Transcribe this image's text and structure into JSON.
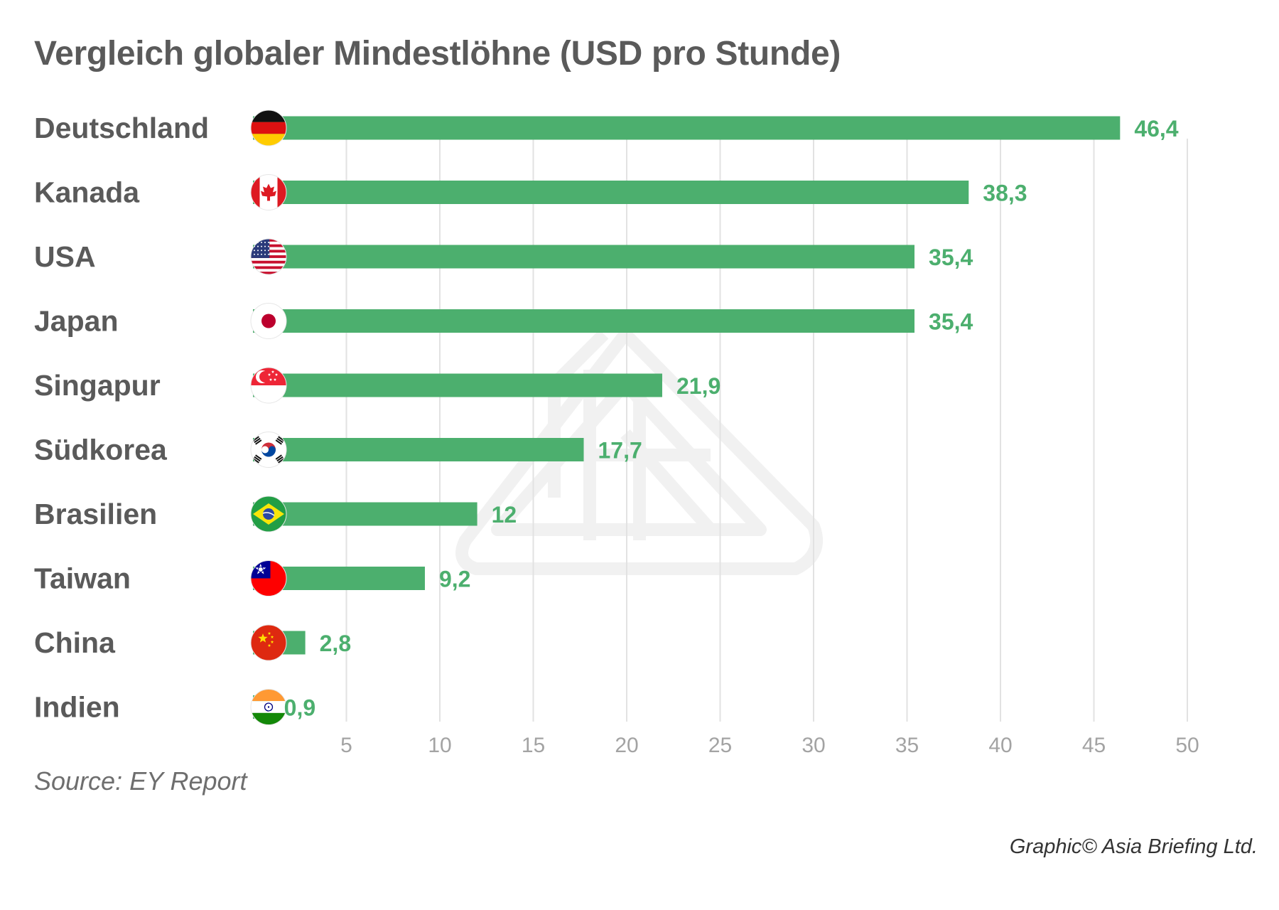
{
  "title": "Vergleich globaler Mindestlöhne (USD pro Stunde)",
  "source": "Source: EY Report",
  "credit": "Graphic© Asia Briefing Ltd.",
  "colors": {
    "bar": "#4caf6e",
    "value_text": "#4caf6e",
    "category_text": "#5a5a5a",
    "grid": "#e2e2e2",
    "tick_text": "#a3a3a3",
    "watermark": "#f1f1f1"
  },
  "chart_data": {
    "type": "bar",
    "orientation": "horizontal",
    "title": "Vergleich globaler Mindestlöhne (USD pro Stunde)",
    "categories": [
      "Deutschland",
      "Kanada",
      "USA",
      "Japan",
      "Singapur",
      "Südkorea",
      "Brasilien",
      "Taiwan",
      "China",
      "Indien"
    ],
    "values": [
      46.4,
      38.3,
      35.4,
      35.4,
      21.9,
      17.7,
      12,
      9.2,
      2.8,
      0.9
    ],
    "value_labels": [
      "46,4",
      "38,3",
      "35,4",
      "35,4",
      "21,9",
      "17,7",
      "12",
      "9,2",
      "2,8",
      "0,9"
    ],
    "flags": [
      "germany-flag-icon",
      "canada-flag-icon",
      "usa-flag-icon",
      "japan-flag-icon",
      "singapore-flag-icon",
      "south-korea-flag-icon",
      "brazil-flag-icon",
      "taiwan-flag-icon",
      "china-flag-icon",
      "india-flag-icon"
    ],
    "xticks": [
      5,
      10,
      15,
      20,
      25,
      30,
      35,
      40,
      45,
      50
    ],
    "xlim": [
      0,
      50
    ],
    "grid": true
  }
}
